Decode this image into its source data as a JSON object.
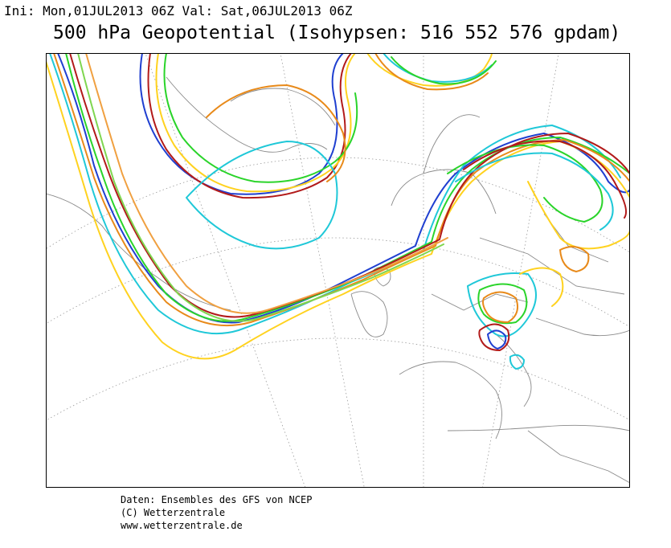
{
  "header": {
    "ini_line": "Ini: Mon,01JUL2013 06Z Val: Sat,06JUL2013 06Z",
    "title": "500 hPa Geopotential (Isohypsen: 516 552 576 gpdam)"
  },
  "footer": {
    "line1": "Daten: Ensembles des GFS von NCEP",
    "line2": "(C) Wetterzentrale",
    "line3": "www.wetterzentrale.de"
  },
  "colors": {
    "ensemble": [
      "#1f3fd0",
      "#1fc8d8",
      "#2ad42a",
      "#ffd21f",
      "#e88a1a",
      "#b21a1a",
      "#7fd650",
      "#f0a040"
    ],
    "coast": "#8a8a8a",
    "grid": "#9a9a9a",
    "frame": "#000000"
  }
}
